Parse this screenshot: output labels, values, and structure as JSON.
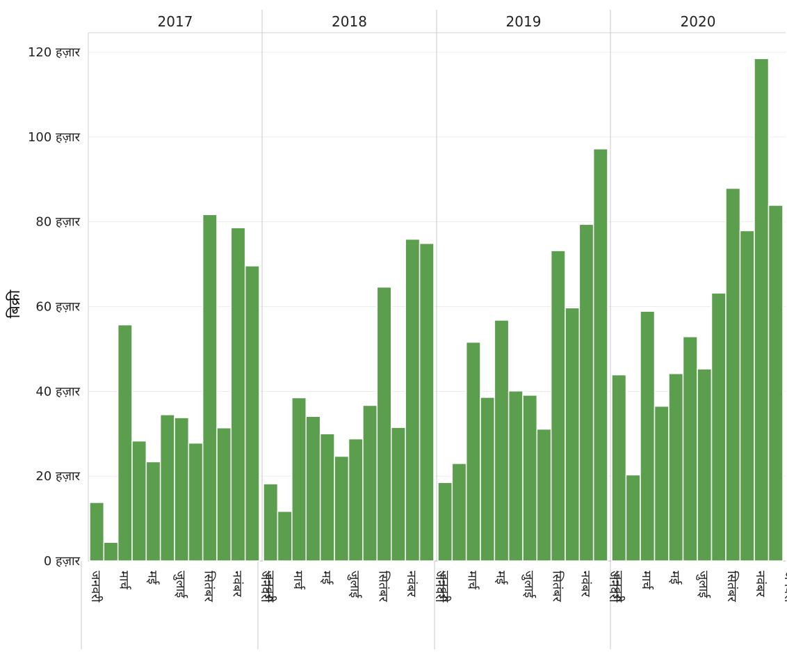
{
  "chart_data": {
    "type": "bar",
    "ylabel": "बिक्री",
    "ylim": [
      0,
      120000
    ],
    "yticks": [
      0,
      20000,
      40000,
      60000,
      80000,
      100000,
      120000
    ],
    "ytick_labels": [
      "0 हज़ार",
      "20 हज़ार",
      "40 हज़ार",
      "60 हज़ार",
      "80 हज़ार",
      "100 हज़ार",
      "120 हज़ार"
    ],
    "color": "#5b9e4d",
    "grid": "horizontal",
    "panels": [
      {
        "title": "2017",
        "values": [
          13800,
          4400,
          55700,
          28300,
          23400,
          34500,
          33800,
          27800,
          81700,
          31400,
          78600,
          69600
        ],
        "x_labels": [
          "जनवरी",
          "मार्च",
          "मई",
          "जुलाई",
          "सितंबर",
          "नवंबर",
          "जनवरी"
        ]
      },
      {
        "title": "2018",
        "values": [
          18200,
          11700,
          38500,
          34100,
          30000,
          24700,
          28800,
          36700,
          64600,
          31500,
          75900,
          74900
        ],
        "x_labels": [
          "जनवरी",
          "मार्च",
          "मई",
          "जुलाई",
          "सितंबर",
          "नवंबर",
          "जनवरी"
        ]
      },
      {
        "title": "2019",
        "values": [
          18500,
          23000,
          51600,
          38600,
          56800,
          40100,
          39100,
          31100,
          73200,
          59700,
          79400,
          97200
        ],
        "x_labels": [
          "जनवरी",
          "मार्च",
          "मई",
          "जुलाई",
          "सितंबर",
          "नवंबर",
          "जनवरी"
        ]
      },
      {
        "title": "2020",
        "values": [
          43900,
          20300,
          58900,
          36500,
          44200,
          52900,
          45300,
          63200,
          87900,
          77900,
          118500,
          83900
        ],
        "x_labels": [
          "जनवरी",
          "मार्च",
          "मई",
          "जुलाई",
          "सितंबर",
          "नवंबर",
          "जनवरी"
        ]
      }
    ]
  }
}
